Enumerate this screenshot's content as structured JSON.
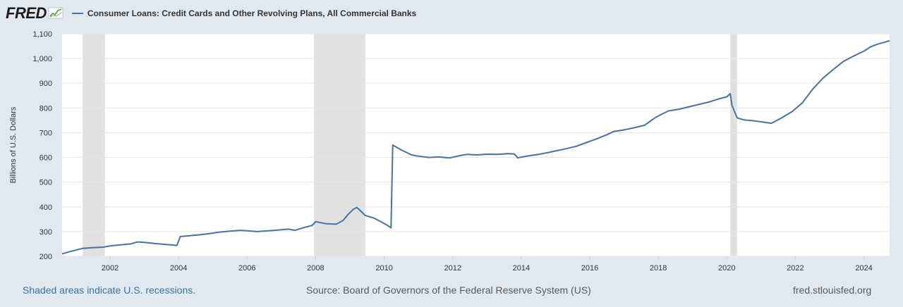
{
  "header": {
    "logo": "FRED",
    "series_title": "Consumer Loans: Credit Cards and Other Revolving Plans, All Commercial Banks"
  },
  "colors": {
    "line": "#4572a7",
    "recession": "#e1e1e1",
    "grid": "#e6e6e6",
    "background": "#e1e9f0",
    "plot": "#ffffff",
    "link": "#3e6fa4"
  },
  "footer": {
    "recession_note": "Shaded areas indicate U.S. recessions.",
    "source": "Source: Board of Governors of the Federal Reserve System (US)",
    "site": "fred.stlouisfed.org"
  },
  "chart_data": {
    "type": "line",
    "title": "Consumer Loans: Credit Cards and Other Revolving Plans, All Commercial Banks",
    "xlabel": "",
    "ylabel": "Billions of U.S. Dollars",
    "xlim": [
      2000.6,
      2024.75
    ],
    "ylim": [
      200,
      1100
    ],
    "yticks": [
      200,
      300,
      400,
      500,
      600,
      700,
      800,
      900,
      1000,
      1100
    ],
    "ytick_labels": [
      "200",
      "300",
      "400",
      "500",
      "600",
      "700",
      "800",
      "900",
      "1,000",
      "1,100"
    ],
    "xticks": [
      2002,
      2004,
      2006,
      2008,
      2010,
      2012,
      2014,
      2016,
      2018,
      2020,
      2022,
      2024
    ],
    "xtick_labels": [
      "2002",
      "2004",
      "2006",
      "2008",
      "2010",
      "2012",
      "2014",
      "2016",
      "2018",
      "2020",
      "2022",
      "2024"
    ],
    "grid": true,
    "recessions": [
      [
        2001.2,
        2001.85
      ],
      [
        2007.95,
        2009.45
      ],
      [
        2020.1,
        2020.3
      ]
    ],
    "series": [
      {
        "name": "Consumer Loans: Credit Cards and Other Revolving Plans, All Commercial Banks",
        "x": [
          2000.6,
          2000.8,
          2001.0,
          2001.2,
          2001.5,
          2001.8,
          2002.0,
          2002.3,
          2002.6,
          2002.8,
          2003.0,
          2003.3,
          2003.6,
          2003.8,
          2003.95,
          2004.05,
          2004.3,
          2004.6,
          2004.9,
          2005.2,
          2005.5,
          2005.8,
          2006.0,
          2006.3,
          2006.6,
          2006.9,
          2007.2,
          2007.4,
          2007.7,
          2007.9,
          2008.0,
          2008.3,
          2008.6,
          2008.8,
          2008.95,
          2009.1,
          2009.2,
          2009.3,
          2009.45,
          2009.7,
          2009.9,
          2010.1,
          2010.2,
          2010.25,
          2010.5,
          2010.8,
          2011.0,
          2011.3,
          2011.6,
          2011.9,
          2012.2,
          2012.4,
          2012.7,
          2013.0,
          2013.3,
          2013.6,
          2013.8,
          2013.9,
          2013.95,
          2014.2,
          2014.5,
          2014.8,
          2015.0,
          2015.3,
          2015.6,
          2015.9,
          2016.2,
          2016.5,
          2016.7,
          2016.95,
          2017.3,
          2017.6,
          2017.9,
          2018.1,
          2018.3,
          2018.6,
          2018.9,
          2019.2,
          2019.5,
          2019.8,
          2020.0,
          2020.1,
          2020.15,
          2020.3,
          2020.5,
          2020.8,
          2021.0,
          2021.3,
          2021.6,
          2021.9,
          2022.2,
          2022.5,
          2022.8,
          2023.1,
          2023.4,
          2023.7,
          2024.0,
          2024.2,
          2024.4,
          2024.6,
          2024.75
        ],
        "values": [
          210,
          218,
          225,
          232,
          235,
          237,
          242,
          246,
          250,
          258,
          256,
          252,
          248,
          246,
          244,
          280,
          283,
          287,
          292,
          298,
          302,
          305,
          303,
          300,
          303,
          306,
          310,
          305,
          318,
          325,
          340,
          332,
          330,
          345,
          370,
          390,
          398,
          385,
          365,
          355,
          340,
          325,
          315,
          650,
          630,
          610,
          605,
          600,
          602,
          598,
          607,
          612,
          610,
          613,
          612,
          615,
          614,
          598,
          600,
          606,
          612,
          620,
          626,
          635,
          645,
          660,
          675,
          692,
          705,
          710,
          720,
          730,
          760,
          775,
          788,
          795,
          805,
          815,
          825,
          838,
          845,
          858,
          810,
          760,
          752,
          748,
          744,
          738,
          760,
          785,
          820,
          875,
          920,
          955,
          988,
          1010,
          1030,
          1048,
          1058,
          1066,
          1072
        ]
      }
    ]
  }
}
